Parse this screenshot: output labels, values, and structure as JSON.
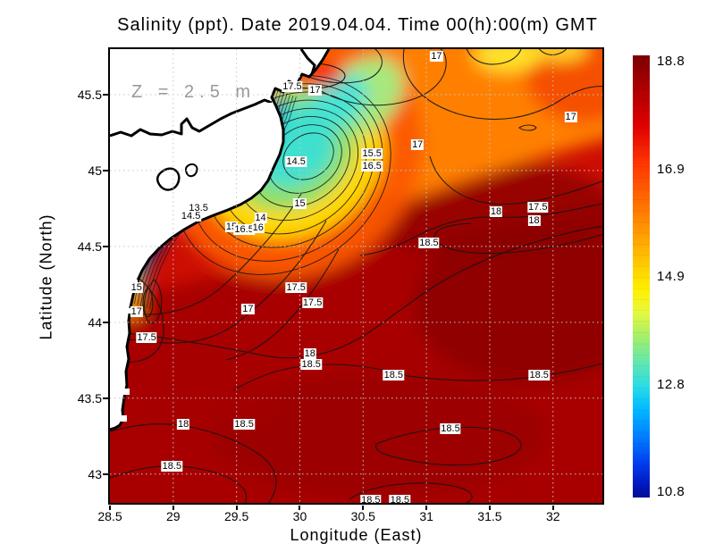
{
  "figure": {
    "title": "Salinity (ppt). Date 2019.04.04. Time 00(h):00(m) GMT",
    "annotation": "Z = 2.5 m"
  },
  "chart_data": {
    "type": "heatmap",
    "subtype": "filled-contour-map",
    "title": "Salinity (ppt). Date 2019.04.04. Time 00(h):00(m) GMT",
    "units": "ppt",
    "annotation": "Z = 2.5 m",
    "xlabel": "Longitude (East)",
    "ylabel": "Latitude (North)",
    "x_range": [
      28.5,
      32.39
    ],
    "y_range": [
      42.81,
      45.8
    ],
    "grid": true,
    "x_ticks": [
      {
        "value": 28.5,
        "label": "28.5"
      },
      {
        "value": 29,
        "label": "29"
      },
      {
        "value": 29.5,
        "label": "29.5"
      },
      {
        "value": 30,
        "label": "30"
      },
      {
        "value": 30.5,
        "label": "30.5"
      },
      {
        "value": 31,
        "label": "31"
      },
      {
        "value": 31.5,
        "label": "31.5"
      },
      {
        "value": 32,
        "label": "32"
      }
    ],
    "y_ticks": [
      {
        "value": 45.5,
        "label": "45.5"
      },
      {
        "value": 45,
        "label": "45"
      },
      {
        "value": 44.5,
        "label": "44.5"
      },
      {
        "value": 44,
        "label": "44"
      },
      {
        "value": 43.5,
        "label": "43.5"
      },
      {
        "value": 43,
        "label": "43"
      }
    ],
    "colorbar": {
      "min": 10.8,
      "max": 18.8,
      "tick_labels": [
        {
          "value": 18.8,
          "label": "18.8"
        },
        {
          "value": 16.9,
          "label": "16.9"
        },
        {
          "value": 14.9,
          "label": "14.9"
        },
        {
          "value": 12.8,
          "label": "12.8"
        },
        {
          "value": 10.8,
          "label": "10.8"
        }
      ],
      "colormap": "jet (dark red = high salinity, dark blue = low salinity)"
    },
    "description": "Sea-surface salinity map of the NW Black Sea. Offshore waters are high salinity (18-18.8 ppt, dark red); a low-salinity river plume (11-15 ppt, blue/cyan/green) hugs the coast near the Danube delta around 29.5-30.3E, 44.5-45.5N. White area is land with coastline.",
    "contour_labels": [
      {
        "value": "17.5",
        "lon": 29.94,
        "lat": 45.55
      },
      {
        "value": "17",
        "lon": 30.12,
        "lat": 45.53
      },
      {
        "value": "17",
        "lon": 31.08,
        "lat": 45.75
      },
      {
        "value": "17",
        "lon": 32.14,
        "lat": 45.35
      },
      {
        "value": "14.5",
        "lon": 29.97,
        "lat": 45.06
      },
      {
        "value": "15.5",
        "lon": 30.57,
        "lat": 45.11
      },
      {
        "value": "16.5",
        "lon": 30.57,
        "lat": 45.03
      },
      {
        "value": "17",
        "lon": 30.93,
        "lat": 45.17
      },
      {
        "value": "13.5",
        "lon": 29.2,
        "lat": 44.75
      },
      {
        "value": "14.5",
        "lon": 29.14,
        "lat": 44.7
      },
      {
        "value": "14",
        "lon": 29.69,
        "lat": 44.69
      },
      {
        "value": "15",
        "lon": 29.46,
        "lat": 44.63
      },
      {
        "value": "16.5",
        "lon": 29.56,
        "lat": 44.61
      },
      {
        "value": "16",
        "lon": 29.67,
        "lat": 44.62
      },
      {
        "value": "15",
        "lon": 30.0,
        "lat": 44.78
      },
      {
        "value": "15",
        "lon": 28.71,
        "lat": 44.23
      },
      {
        "value": "17",
        "lon": 28.71,
        "lat": 44.07
      },
      {
        "value": "17.5",
        "lon": 28.79,
        "lat": 43.9
      },
      {
        "value": "17",
        "lon": 29.59,
        "lat": 44.09
      },
      {
        "value": "17.5",
        "lon": 29.97,
        "lat": 44.23
      },
      {
        "value": "17.5",
        "lon": 30.1,
        "lat": 44.13
      },
      {
        "value": "18.5",
        "lon": 31.02,
        "lat": 44.52
      },
      {
        "value": "18",
        "lon": 31.55,
        "lat": 44.73
      },
      {
        "value": "17.5",
        "lon": 31.88,
        "lat": 44.76
      },
      {
        "value": "18",
        "lon": 31.85,
        "lat": 44.67
      },
      {
        "value": "18",
        "lon": 30.08,
        "lat": 43.79
      },
      {
        "value": "18.5",
        "lon": 30.09,
        "lat": 43.72
      },
      {
        "value": "18",
        "lon": 29.08,
        "lat": 43.33
      },
      {
        "value": "18.5",
        "lon": 29.56,
        "lat": 43.33
      },
      {
        "value": "18.5",
        "lon": 28.99,
        "lat": 43.05
      },
      {
        "value": "18.5",
        "lon": 30.74,
        "lat": 43.65
      },
      {
        "value": "18.5",
        "lon": 31.89,
        "lat": 43.65
      },
      {
        "value": "18.5",
        "lon": 31.19,
        "lat": 43.3
      },
      {
        "value": "18.5",
        "lon": 30.56,
        "lat": 42.83
      },
      {
        "value": "18.5",
        "lon": 30.79,
        "lat": 42.83
      }
    ]
  }
}
